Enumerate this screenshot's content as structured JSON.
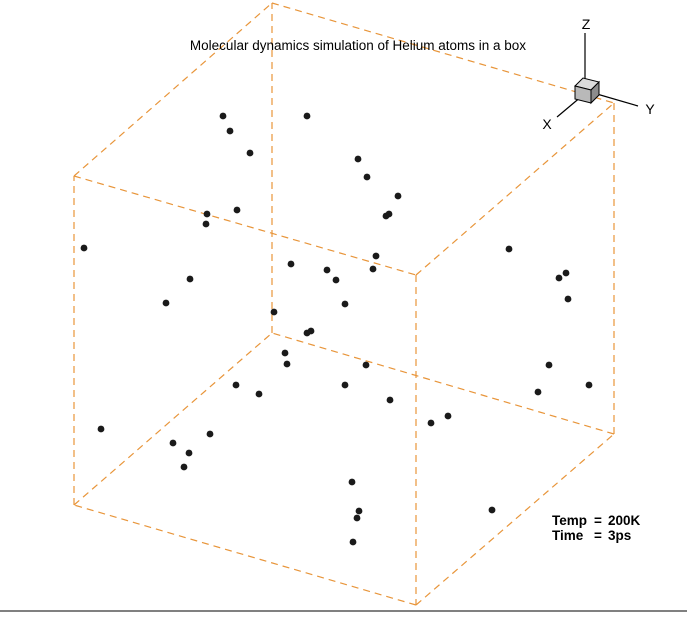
{
  "title": "Molecular dynamics simulation of Helium atoms in a box",
  "axes": {
    "x": "X",
    "y": "Y",
    "z": "Z"
  },
  "status": {
    "temp_label": "Temp",
    "temp_value": "200K",
    "time_label": "Time",
    "time_value": "3ps"
  },
  "colors": {
    "box_edge": "#e8953a",
    "atom": "#1a1a1a",
    "triad_cube": "#b9b9b9"
  },
  "icons": {
    "orientation": "axis-triad-icon"
  }
}
